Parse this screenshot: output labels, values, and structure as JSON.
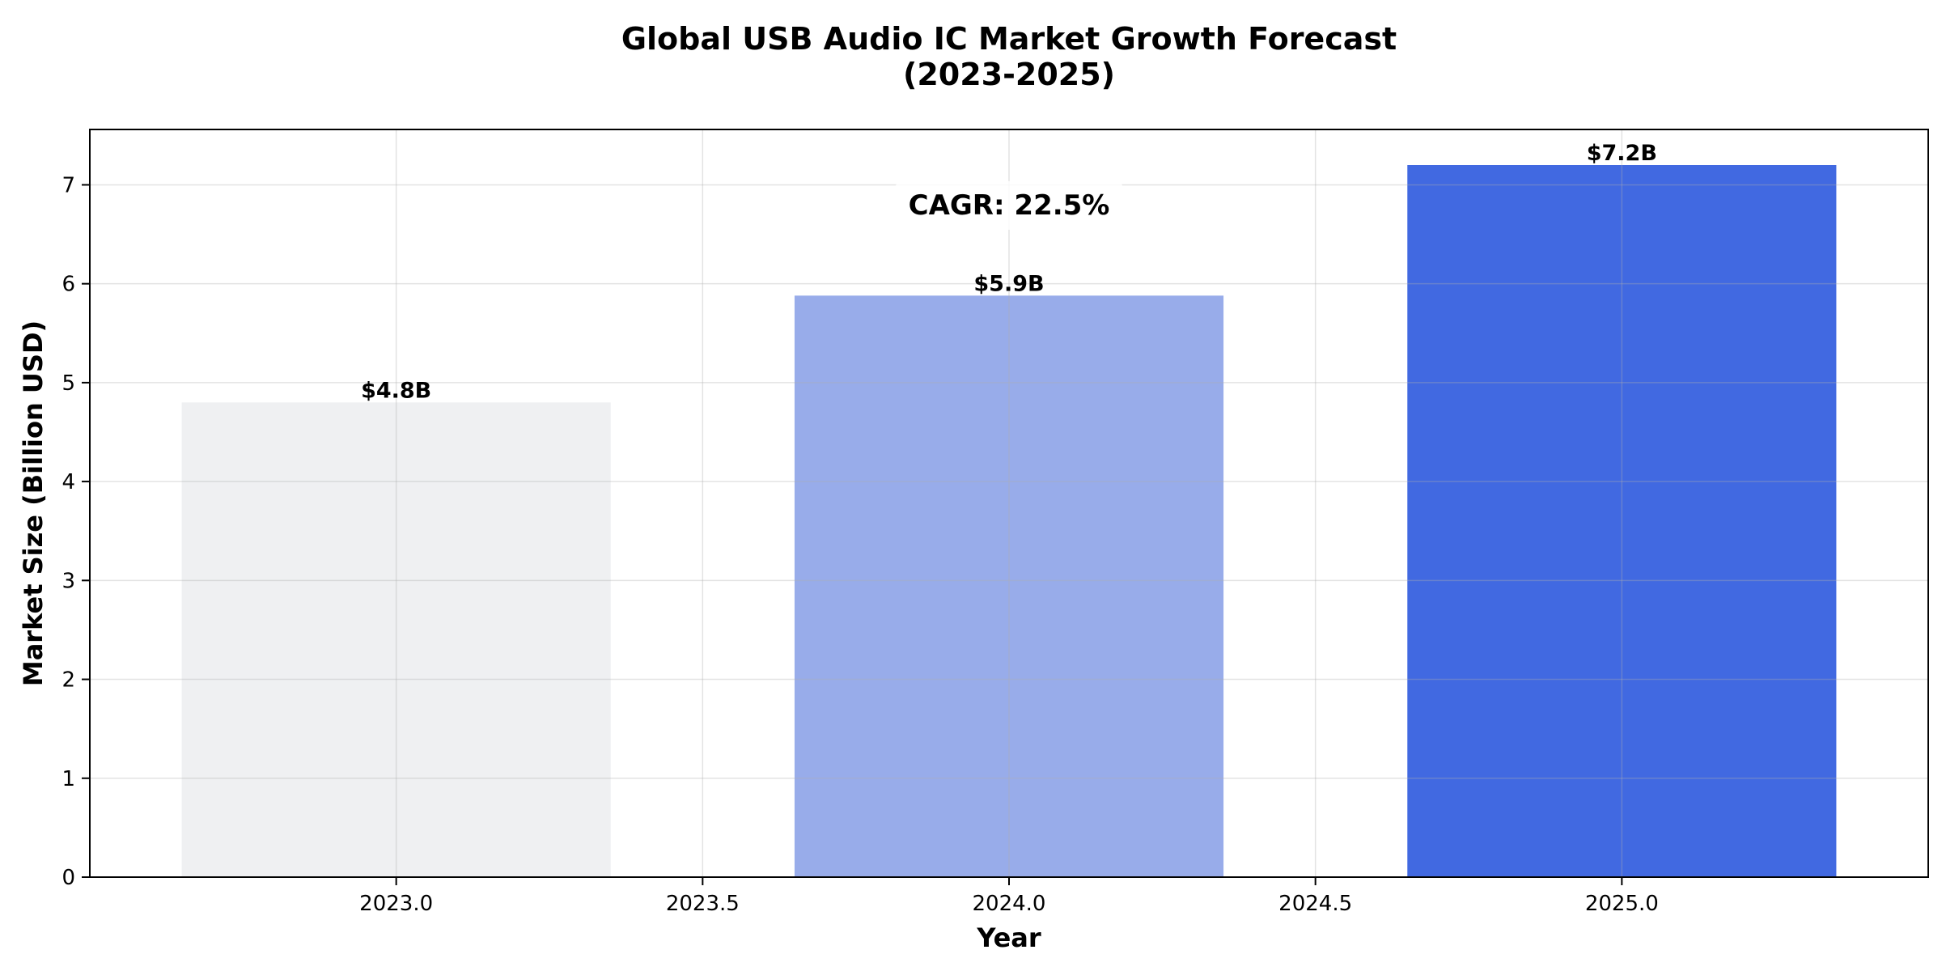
{
  "chart_data": {
    "type": "bar",
    "title": "Global USB Audio IC Market Growth Forecast\n(2023-2025)",
    "xlabel": "Year",
    "ylabel": "Market Size (Billion USD)",
    "x": [
      2023.0,
      2024.0,
      2025.0
    ],
    "values": [
      4.8,
      5.88,
      7.2
    ],
    "value_labels": [
      "$4.8B",
      "$5.9B",
      "$7.2B"
    ],
    "bar_colors": [
      "#eff0f2",
      "#98acea",
      "#4169e1"
    ],
    "bar_width": 0.7,
    "xlim": [
      2022.5,
      2025.5
    ],
    "ylim": [
      0,
      7.56
    ],
    "xticks": [
      2023.0,
      2023.5,
      2024.0,
      2024.5,
      2025.0
    ],
    "xtick_labels": [
      "2023.0",
      "2023.5",
      "2024.0",
      "2024.5",
      "2025.0"
    ],
    "yticks": [
      0,
      1,
      2,
      3,
      4,
      5,
      6,
      7
    ],
    "ytick_labels": [
      "0",
      "1",
      "2",
      "3",
      "4",
      "5",
      "6",
      "7"
    ],
    "grid": true,
    "legend": false,
    "annotations": [
      {
        "text": "CAGR: 22.5%",
        "x": 2024.0,
        "y": 6.8
      }
    ]
  }
}
